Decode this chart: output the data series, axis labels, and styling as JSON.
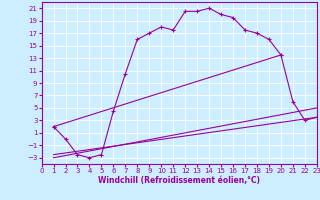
{
  "background_color": "#cceeff",
  "grid_color": "#ffffff",
  "line_color": "#990099",
  "xlabel": "Windchill (Refroidissement éolien,°C)",
  "xlim": [
    0,
    23
  ],
  "ylim": [
    -4,
    22
  ],
  "xticks": [
    0,
    1,
    2,
    3,
    4,
    5,
    6,
    7,
    8,
    9,
    10,
    11,
    12,
    13,
    14,
    15,
    16,
    17,
    18,
    19,
    20,
    21,
    22,
    23
  ],
  "yticks": [
    -3,
    -1,
    1,
    3,
    5,
    7,
    9,
    11,
    13,
    15,
    17,
    19,
    21
  ],
  "line1_x": [
    1,
    2,
    3,
    4,
    5,
    6,
    7,
    8,
    9,
    10,
    11,
    12,
    13,
    14,
    15,
    16,
    17,
    18,
    19,
    20
  ],
  "line1_y": [
    2,
    0,
    -2.5,
    -3,
    -2.5,
    4.5,
    10.5,
    16,
    17,
    18,
    17.5,
    20.5,
    20.5,
    21,
    20,
    19.5,
    17.5,
    17,
    16,
    13.5
  ],
  "line2_x": [
    1,
    20,
    21,
    22,
    23
  ],
  "line2_y": [
    2,
    13.5,
    6,
    3,
    3.5
  ],
  "line3_x": [
    1,
    23
  ],
  "line3_y": [
    -3,
    5
  ],
  "line4_x": [
    1,
    23
  ],
  "line4_y": [
    -2.5,
    3.5
  ],
  "lw": 0.8,
  "ms": 3
}
